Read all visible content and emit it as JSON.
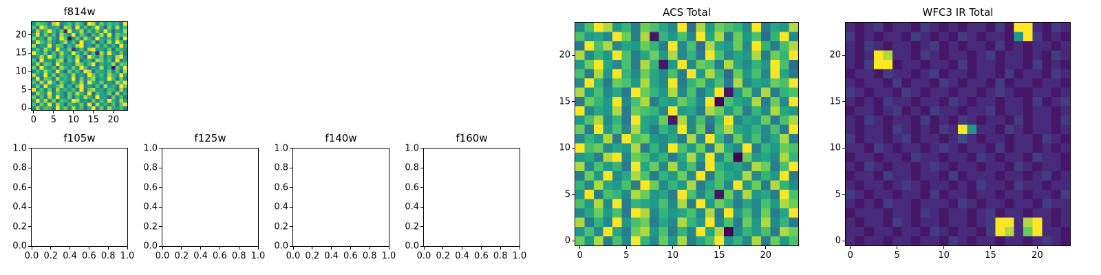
{
  "figure": {
    "background": "#ffffff",
    "text_color": "#000000",
    "axis_color": "#000000"
  },
  "colors": {
    "viridis_stops": [
      [
        0.0,
        "#440154"
      ],
      [
        0.125,
        "#482878"
      ],
      [
        0.25,
        "#3e4a89"
      ],
      [
        0.375,
        "#31688e"
      ],
      [
        0.5,
        "#26828e"
      ],
      [
        0.625,
        "#1f9e89"
      ],
      [
        0.75,
        "#35b779"
      ],
      [
        0.875,
        "#6dcd59"
      ],
      [
        1.0,
        "#fde725"
      ]
    ]
  },
  "chart_data": [
    {
      "type": "heatmap",
      "title": "f814w",
      "grid_size": 24,
      "x_range": [
        -0.5,
        23.5
      ],
      "y_range": [
        -0.5,
        23.5
      ],
      "x_ticks": [
        "0",
        "5",
        "10",
        "15",
        "20"
      ],
      "y_ticks": [
        "0",
        "5",
        "10",
        "15",
        "20"
      ],
      "colormap": "viridis",
      "cell_values_hex_0_to_f": [
        "9dcb7ef8ac9db6fe8d9cab7f",
        "c8fd9ab6ed7f9c8bfa6d9e8c",
        "7e9cfb8d2f9ae7c8d9fb6a9e",
        "af8d9c7eb9f8da6c9e8f7dbc",
        "d9b7ea8fc19d8eb7fa9c8d6f",
        "8fcad97be8c7f9ad6b8e9fc7",
        "e7a9f8dc6b9ef8a7d9c8b7fa",
        "9c8eb7fa9d38c7ef9a8d6cb9",
        "fb9d7c8ea9fb8d7c2e9fa8d7",
        "8ae9fc7d9b8ea6fc9d7b8ef9",
        "c7f9a8de6c9f7ab8ed9c7f8a",
        "9e8dc7fb9a7ed8cf6b9ae7dc",
        "d8fa9c7eb8d9fc7a9e8b1d9f",
        "7c9eb8fa6d9c8fe7ba9d8c7e",
        "ea8f9d7cb9e8a7fd9c8eb9fa",
        "9f7dc8eab9f7d8ce8a9fc7d8",
        "c8e9fb7da8c9e7fb9d8a7ecf",
        "8d7fa9ce8b7df9a8c7e9b8fd",
        "f9c8d7eab9c8f7de9a8cb7e9",
        "7eb9f8ca7d9eb8f6ca9d7e8b",
        "d8c7e9fa8d7c9eb8f9a6d8c7",
        "9fae8d7cb9fe8a7d8c9fb8ea",
        "c7d9f8eb6ca9d8f7e9b8c7df",
        "8e9cb7fad8e9c7bf8d7ea9c8"
      ]
    },
    {
      "type": "empty",
      "title": "f105w",
      "x_range": [
        0,
        1
      ],
      "y_range": [
        0,
        1
      ],
      "x_ticks": [
        "0.0",
        "0.2",
        "0.4",
        "0.6",
        "0.8",
        "1.0"
      ],
      "y_ticks": [
        "0.0",
        "0.2",
        "0.4",
        "0.6",
        "0.8",
        "1.0"
      ]
    },
    {
      "type": "empty",
      "title": "f125w",
      "x_range": [
        0,
        1
      ],
      "y_range": [
        0,
        1
      ],
      "x_ticks": [
        "0.0",
        "0.2",
        "0.4",
        "0.6",
        "0.8",
        "1.0"
      ],
      "y_ticks": [
        "0.0",
        "0.2",
        "0.4",
        "0.6",
        "0.8",
        "1.0"
      ]
    },
    {
      "type": "empty",
      "title": "f140w",
      "x_range": [
        0,
        1
      ],
      "y_range": [
        0,
        1
      ],
      "x_ticks": [
        "0.0",
        "0.2",
        "0.4",
        "0.6",
        "0.8",
        "1.0"
      ],
      "y_ticks": [
        "0.0",
        "0.2",
        "0.4",
        "0.6",
        "0.8",
        "1.0"
      ]
    },
    {
      "type": "empty",
      "title": "f160w",
      "x_range": [
        0,
        1
      ],
      "y_range": [
        0,
        1
      ],
      "x_ticks": [
        "0.0",
        "0.2",
        "0.4",
        "0.6",
        "0.8",
        "1.0"
      ],
      "y_ticks": [
        "0.0",
        "0.2",
        "0.4",
        "0.6",
        "0.8",
        "1.0"
      ]
    },
    {
      "type": "heatmap",
      "title": "ACS Total",
      "grid_size": 24,
      "x_range": [
        -0.5,
        23.5
      ],
      "y_range": [
        -0.5,
        23.5
      ],
      "x_ticks": [
        "0",
        "5",
        "10",
        "15",
        "20"
      ],
      "y_ticks": [
        "0",
        "5",
        "10",
        "15",
        "20"
      ],
      "colormap": "viridis",
      "cell_values_hex_0_to_f": [
        "8cfe9b7dca8f6e9dcb8f7a9e",
        "c9a8fd7e1b9c8fae7d9c6bf8",
        "7fce8a9db7f8c6ea9d8fb7ce",
        "e8b9fc7ad9e8b7fc8a9e7dbf",
        "9dfa8c7eb19f8dc7ea8b9fc6",
        "c7e9fb8da8c7f9eb6d9c8fa7",
        "8fb7dc9ea8f7bd9c7e8a9dcf",
        "e9c8a7fdb9e8c7af19d8e7bc",
        "7db9f8ce7a9db8f0ca9e7d8f",
        "f8a9e7dcb8f9a7ed9c7b8ea9",
        "9ce8b7fa9d1e8c7bf8a9d7ce",
        "d7f9c8ea7b9f8d6cea9b8c7f",
        "8b9e7fcd98a7e8fb7d9c8ae7",
        "fcd8a9e7b8fc9d7ea8f7b9dc",
        "9a7ef8dc9b7ae9f8c0d9a8eb",
        "e8c9b7fad8e9c7fb9a8ed7cf",
        "7d9f8aec7b9d8f7ca9e8b9f7",
        "b8ea9c7fd8b9e7ac8f9d7eb8",
        "9f7cb8ed9a7fc8b1d8e9a7fc",
        "c9e8f7ba9c8e7f9db7a8c9ed",
        "8ad9c7fe8b9ac8e7f9c8d7af",
        "e7b8f9cd7a8eb9f8c7d9e8b7",
        "9c8fa7de9c7b8fae08b9c7ed",
        "d9e7c8fb8d9e7acf9b8e7d9c"
      ]
    },
    {
      "type": "heatmap",
      "title": "WFC3 IR Total",
      "grid_size": 24,
      "x_range": [
        -0.5,
        23.5
      ],
      "y_range": [
        -0.5,
        23.5
      ],
      "x_ticks": [
        "0",
        "5",
        "10",
        "15",
        "20"
      ],
      "y_ticks": [
        "0",
        "5",
        "10",
        "15",
        "20"
      ],
      "colormap": "viridis",
      "cell_values_hex_0_to_f": [
        "212312213212122131ff2132",
        "3121221321213212219f3121",
        "213212212312122131212212",
        "212fe2213212212312212132",
        "213ff1221221312212213121",
        "122132212312212213122132",
        "212213122132122131221221",
        "321221321221221232112212",
        "212132212213212212213123",
        "122123121322122312212212",
        "213212213121321221312213",
        "212213212132f92213212212",
        "312212312212421221221321",
        "221321221232122131221212",
        "122122132212213212213221",
        "213212212321221221321221",
        "122132212213122212212312",
        "212212321221213221322122",
        "321221221312212212212213",
        "212132212221321221221322",
        "122212213212212312212212",
        "2122132122122123ff2ef212",
        "2212212213212213fe2df221",
        "212212212213212212212321"
      ]
    }
  ]
}
